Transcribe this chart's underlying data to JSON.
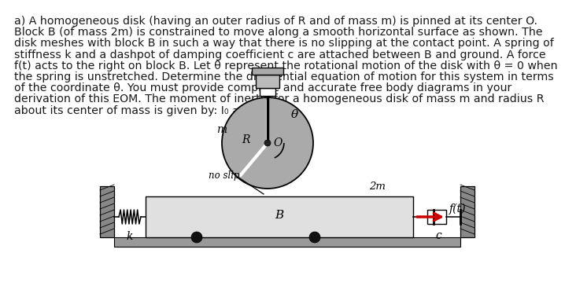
{
  "text_lines": [
    "a) A homogeneous disk (having an outer radius of R and of mass m) is pinned at its center O.",
    "Block B (of mass 2m) is constrained to move along a smooth horizontal surface as shown. The",
    "disk meshes with block B in such a way that there is no slipping at the contact point. A spring of",
    "stiffness k and a dashpot of damping coefficient c are attached between B and ground. A force",
    "f(t) acts to the right on block B. Let θ represent the rotational motion of the disk with θ = 0 when",
    "the spring is unstretched. Determine the differential equation of motion for this system in terms",
    "of the coordinate θ. You must provide complete and accurate free body diagrams in your",
    "derivation of this EOM. The moment of inertia for a homogeneous disk of mass m and radius R",
    "about its center of mass is given by: I₀ = mR² /2 ."
  ],
  "bg_color": "#ffffff",
  "text_color": "#1a1a1a",
  "disk_color": "#aaaaaa",
  "block_color": "#e0e0e0",
  "wall_color": "#888888",
  "ground_color": "#999999",
  "arrow_color": "#cc0000",
  "text_fontsize": 10.2,
  "label_fontsize": 9.5
}
